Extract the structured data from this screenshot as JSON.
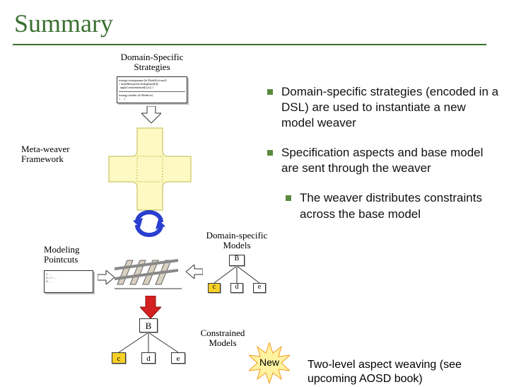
{
  "title": "Summary",
  "colors": {
    "accent": "#3a7030",
    "box": "#ffffff",
    "shadow": "#bbbbbb",
    "cross_fill": "#fdf9c2",
    "red": "#d42020",
    "blue": "#2a3fd0",
    "yellow": "#f7d028",
    "star_orange": "#f59a1f"
  },
  "labels": {
    "strategies": "Domain-Specific\nStrategies",
    "framework": "Meta-weaver\nFramework",
    "pointcuts": "Modeling\nPointcuts",
    "dsmodels": "Domain-specific\nModels",
    "constrained": "Constrained\nModels",
    "newlbl": "New"
  },
  "tree": {
    "root": "B",
    "children": [
      "c",
      "d",
      "e"
    ]
  },
  "bullets": [
    "Domain-specific strategies (encoded in a DSL) are used to instantiate a new model weaver",
    "Specification aspects and base model are sent through the weaver",
    "The weaver distributes constraints across the base model"
  ],
  "indent": [
    0,
    0,
    26
  ],
  "footline": "Two-level aspect weaving (see upcoming AOSD book)"
}
